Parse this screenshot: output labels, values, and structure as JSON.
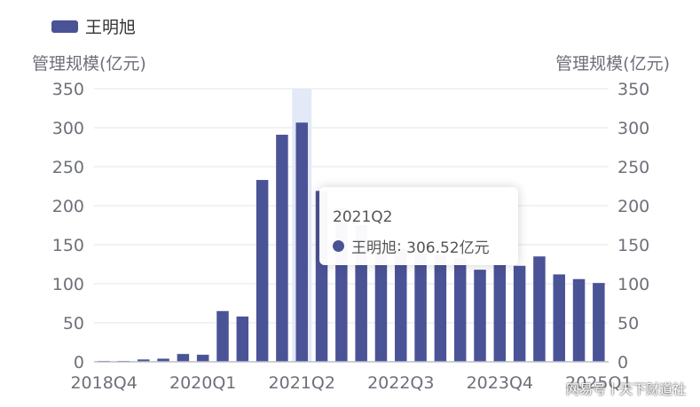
{
  "legend": {
    "label": "王明旭"
  },
  "axis_titles": {
    "left": "管理规模(亿元)",
    "right": "管理规模(亿元)"
  },
  "tooltip": {
    "title": "2021Q2",
    "series": "王明旭",
    "value_text": "306.52亿元"
  },
  "watermark": "网易号丨天下财道社",
  "colors": {
    "bar": "#4b5397",
    "highlight_bg": "#e3e9f7",
    "grid": "#e0e6f1",
    "axis_text": "#6e7079"
  },
  "chart_data": {
    "type": "bar",
    "categories": [
      "2018Q4",
      "2019Q1",
      "2019Q2",
      "2019Q3",
      "2019Q4",
      "2020Q1",
      "2020Q2",
      "2020Q3",
      "2020Q4",
      "2021Q1",
      "2021Q2",
      "2021Q3",
      "2021Q4",
      "2022Q1",
      "2022Q2",
      "2022Q3",
      "2022Q4",
      "2023Q1",
      "2023Q2",
      "2023Q3",
      "2023Q4",
      "2024Q1",
      "2024Q2",
      "2024Q3",
      "2024Q4",
      "2025Q1"
    ],
    "xtick_labels": [
      "2018Q4",
      "2020Q1",
      "2021Q2",
      "2022Q3",
      "2023Q4",
      "2025Q1"
    ],
    "series": [
      {
        "name": "王明旭",
        "values": [
          1,
          1,
          3,
          4,
          10,
          9,
          65,
          58,
          233,
          291,
          306.52,
          219,
          197,
          175,
          150,
          145,
          140,
          137,
          133,
          118,
          124,
          123,
          135,
          112,
          106,
          101
        ]
      }
    ],
    "ylim": [
      0,
      350
    ],
    "yticks": [
      0,
      50,
      100,
      150,
      200,
      250,
      300,
      350
    ],
    "highlight_category": "2021Q2"
  }
}
